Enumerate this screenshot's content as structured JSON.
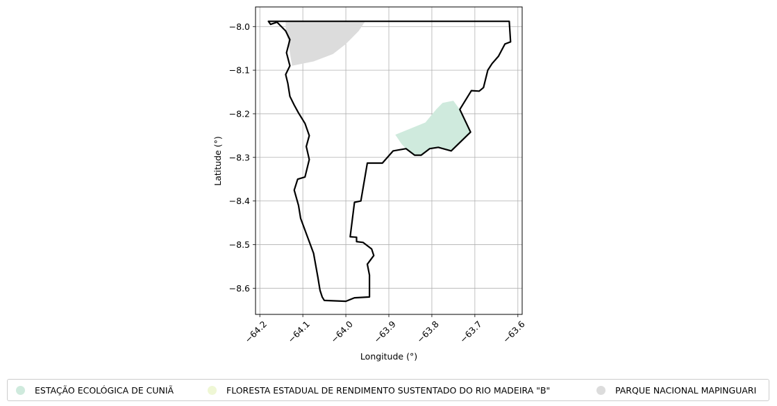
{
  "chart_data": {
    "type": "map",
    "xlabel": "Longitude (°)",
    "ylabel": "Latitude (°)",
    "xlim": [
      -64.21,
      -63.59
    ],
    "ylim": [
      -8.66,
      -7.955
    ],
    "grid": true,
    "x_ticks": [
      -64.2,
      -64.1,
      -64.0,
      -63.9,
      -63.8,
      -63.7,
      -63.6
    ],
    "x_tick_labels": [
      "−64.2",
      "−64.1",
      "−64.0",
      "−63.9",
      "−63.8",
      "−63.7",
      "−63.6"
    ],
    "y_ticks": [
      -8.0,
      -8.1,
      -8.2,
      -8.3,
      -8.4,
      -8.5,
      -8.6
    ],
    "y_tick_labels": [
      "−8.0",
      "−8.1",
      "−8.2",
      "−8.3",
      "−8.4",
      "−8.5",
      "−8.6"
    ],
    "boundary": {
      "color": "#000000",
      "coords": [
        [
          -64.18,
          -7.988
        ],
        [
          -63.62,
          -7.988
        ],
        [
          -63.617,
          -8.035
        ],
        [
          -63.63,
          -8.04
        ],
        [
          -63.645,
          -8.068
        ],
        [
          -63.66,
          -8.085
        ],
        [
          -63.67,
          -8.1
        ],
        [
          -63.68,
          -8.14
        ],
        [
          -63.69,
          -8.148
        ],
        [
          -63.708,
          -8.147
        ],
        [
          -63.735,
          -8.19
        ],
        [
          -63.71,
          -8.242
        ],
        [
          -63.755,
          -8.285
        ],
        [
          -63.785,
          -8.277
        ],
        [
          -63.805,
          -8.28
        ],
        [
          -63.825,
          -8.295
        ],
        [
          -63.84,
          -8.295
        ],
        [
          -63.86,
          -8.28
        ],
        [
          -63.89,
          -8.285
        ],
        [
          -63.915,
          -8.313
        ],
        [
          -63.95,
          -8.313
        ],
        [
          -63.965,
          -8.4
        ],
        [
          -63.98,
          -8.403
        ],
        [
          -63.99,
          -8.482
        ],
        [
          -63.975,
          -8.483
        ],
        [
          -63.975,
          -8.493
        ],
        [
          -63.96,
          -8.495
        ],
        [
          -63.94,
          -8.51
        ],
        [
          -63.935,
          -8.525
        ],
        [
          -63.95,
          -8.545
        ],
        [
          -63.945,
          -8.57
        ],
        [
          -63.945,
          -8.62
        ],
        [
          -63.98,
          -8.622
        ],
        [
          -64.0,
          -8.63
        ],
        [
          -64.05,
          -8.628
        ],
        [
          -64.055,
          -8.62
        ],
        [
          -64.06,
          -8.605
        ],
        [
          -64.065,
          -8.575
        ],
        [
          -64.075,
          -8.52
        ],
        [
          -64.09,
          -8.48
        ],
        [
          -64.105,
          -8.44
        ],
        [
          -64.11,
          -8.41
        ],
        [
          -64.12,
          -8.375
        ],
        [
          -64.112,
          -8.35
        ],
        [
          -64.095,
          -8.345
        ],
        [
          -64.085,
          -8.305
        ],
        [
          -64.092,
          -8.275
        ],
        [
          -64.085,
          -8.25
        ],
        [
          -64.095,
          -8.222
        ],
        [
          -64.11,
          -8.198
        ],
        [
          -64.12,
          -8.18
        ],
        [
          -64.13,
          -8.16
        ],
        [
          -64.135,
          -8.13
        ],
        [
          -64.14,
          -8.11
        ],
        [
          -64.13,
          -8.09
        ],
        [
          -64.138,
          -8.06
        ],
        [
          -64.13,
          -8.03
        ],
        [
          -64.14,
          -8.01
        ],
        [
          -64.16,
          -7.99
        ],
        [
          -64.175,
          -7.995
        ],
        [
          -64.18,
          -7.988
        ]
      ]
    },
    "areas": [
      {
        "name": "ESTAÇÃO ECOLÓGICA DE CUNIÃ",
        "color": "#cfeadd",
        "coords": [
          [
            -63.885,
            -8.248
          ],
          [
            -63.815,
            -8.22
          ],
          [
            -63.79,
            -8.19
          ],
          [
            -63.775,
            -8.175
          ],
          [
            -63.75,
            -8.17
          ],
          [
            -63.735,
            -8.19
          ],
          [
            -63.71,
            -8.242
          ],
          [
            -63.755,
            -8.285
          ],
          [
            -63.785,
            -8.277
          ],
          [
            -63.805,
            -8.28
          ],
          [
            -63.825,
            -8.295
          ],
          [
            -63.84,
            -8.295
          ],
          [
            -63.86,
            -8.28
          ],
          [
            -63.87,
            -8.27
          ]
        ]
      },
      {
        "name": "FLORESTA ESTADUAL DE RENDIMENTO SUSTENTADO DO RIO MADEIRA \"B\"",
        "color": "#eff7d5",
        "coords": []
      },
      {
        "name": "PARQUE NACIONAL MAPINGUARI",
        "color": "#dcdcdc",
        "coords": [
          [
            -64.14,
            -7.988
          ],
          [
            -63.955,
            -7.988
          ],
          [
            -63.97,
            -8.01
          ],
          [
            -64.0,
            -8.04
          ],
          [
            -64.03,
            -8.063
          ],
          [
            -64.075,
            -8.08
          ],
          [
            -64.125,
            -8.09
          ],
          [
            -64.13,
            -8.06
          ],
          [
            -64.135,
            -8.03
          ],
          [
            -64.14,
            -8.01
          ]
        ]
      }
    ],
    "legend": {
      "position": "bottom",
      "entries": [
        {
          "label": "ESTAÇÃO ECOLÓGICA DE CUNIÃ",
          "color": "#cfeadd"
        },
        {
          "label": "FLORESTA ESTADUAL DE RENDIMENTO SUSTENTADO DO RIO MADEIRA \"B\"",
          "color": "#eff7d5"
        },
        {
          "label": "PARQUE NACIONAL MAPINGUARI",
          "color": "#dcdcdc"
        }
      ]
    }
  }
}
